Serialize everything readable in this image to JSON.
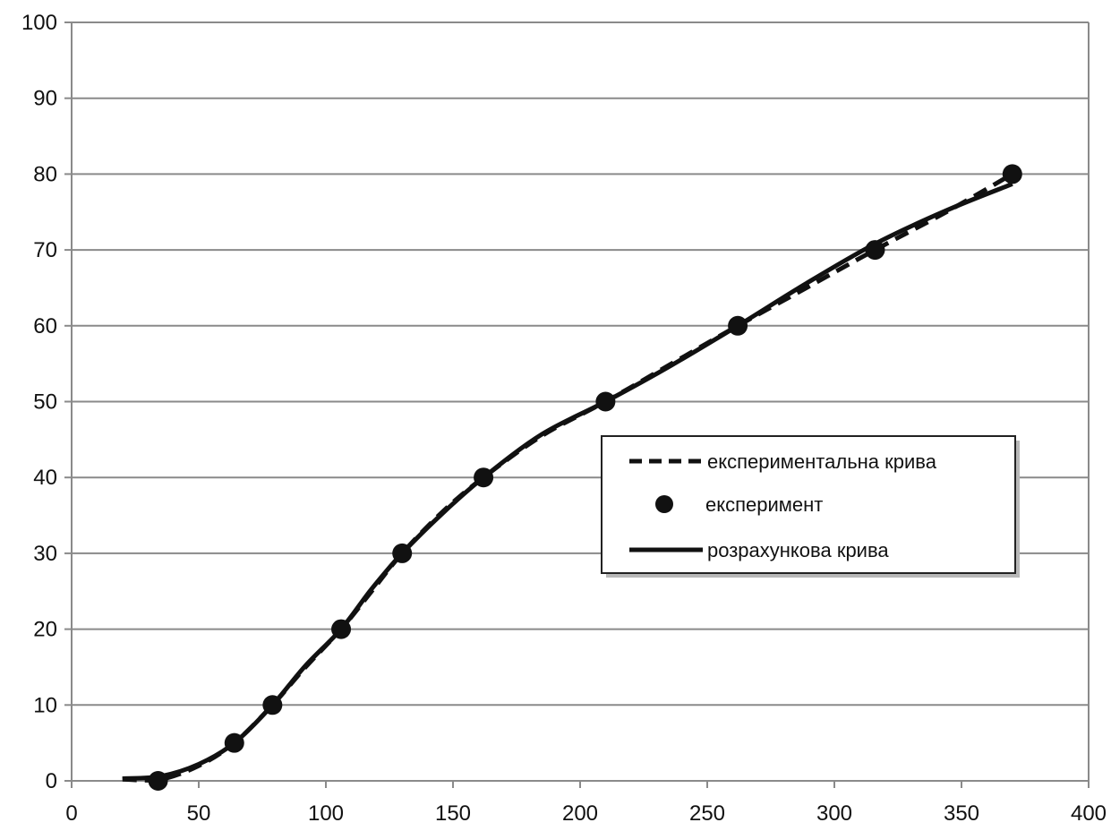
{
  "chart_data": {
    "type": "line",
    "title": "",
    "xlabel": "",
    "ylabel": "",
    "xlim": [
      0,
      400
    ],
    "ylim": [
      0,
      100
    ],
    "x_ticks": [
      "0",
      "50",
      "100",
      "150",
      "200",
      "250",
      "300",
      "350",
      "400"
    ],
    "y_ticks": [
      "0",
      "10",
      "20",
      "30",
      "40",
      "50",
      "60",
      "70",
      "80",
      "90",
      "100"
    ],
    "grid": "horizontal",
    "legend_position": "center-right",
    "series": [
      {
        "name": "експериментальна крива",
        "style": "dashed",
        "color": "#111111",
        "points": [
          [
            20,
            0.2
          ],
          [
            35,
            0.2
          ],
          [
            50,
            2
          ],
          [
            64,
            5
          ],
          [
            79,
            10
          ],
          [
            92,
            15
          ],
          [
            106,
            20
          ],
          [
            118,
            25
          ],
          [
            130,
            30
          ],
          [
            146,
            35.5
          ],
          [
            162,
            40
          ],
          [
            185,
            45.5
          ],
          [
            210,
            50
          ],
          [
            236,
            55
          ],
          [
            262,
            60
          ],
          [
            289,
            65
          ],
          [
            316,
            70
          ],
          [
            344,
            75
          ],
          [
            370,
            80
          ]
        ]
      },
      {
        "name": "експеримент",
        "style": "markers",
        "color": "#111111",
        "points": [
          [
            34,
            0
          ],
          [
            64,
            5
          ],
          [
            79,
            10
          ],
          [
            106,
            20
          ],
          [
            130,
            30
          ],
          [
            162,
            40
          ],
          [
            210,
            50
          ],
          [
            262,
            60
          ],
          [
            316,
            70
          ],
          [
            370,
            80
          ]
        ]
      },
      {
        "name": "розрахункова крива",
        "style": "solid",
        "color": "#111111",
        "points": [
          [
            20,
            0.3
          ],
          [
            35,
            0.6
          ],
          [
            50,
            2.2
          ],
          [
            64,
            5
          ],
          [
            79,
            10
          ],
          [
            92,
            15.2
          ],
          [
            106,
            20
          ],
          [
            118,
            25.3
          ],
          [
            130,
            30
          ],
          [
            146,
            35.3
          ],
          [
            162,
            40
          ],
          [
            185,
            45.7
          ],
          [
            210,
            50
          ],
          [
            236,
            54.8
          ],
          [
            262,
            60
          ],
          [
            289,
            65.6
          ],
          [
            316,
            70.8
          ],
          [
            344,
            75.2
          ],
          [
            370,
            78.7
          ]
        ]
      }
    ]
  }
}
